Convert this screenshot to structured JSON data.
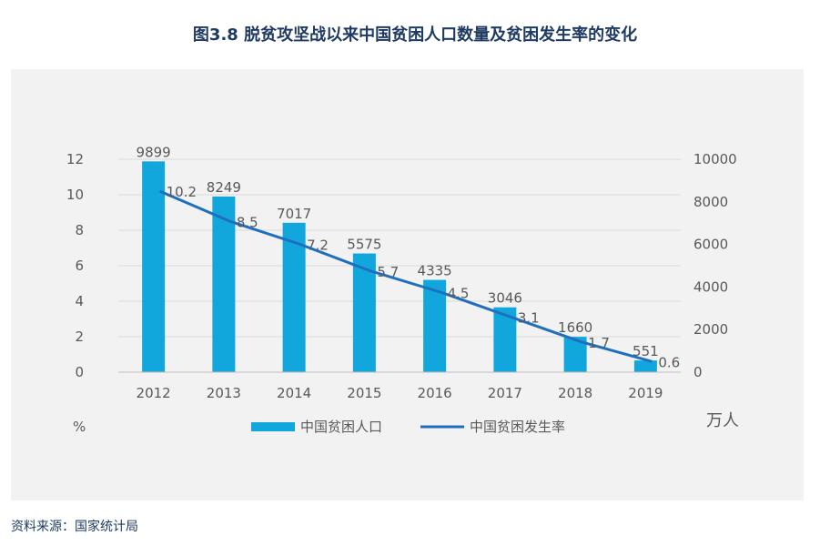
{
  "title": "图3.8 脱贫攻坚战以来中国贫困人口数量及贫困发生率的变化",
  "source": "资料来源：国家统计局",
  "colors": {
    "bar": "#12a7dc",
    "line": "#1f6fbf",
    "text": "#595959",
    "grid": "#d9d9d9",
    "title": "#1f3b63"
  },
  "chart_data": {
    "type": "bar",
    "title": "图3.8 脱贫攻坚战以来中国贫困人口数量及贫困发生率的变化",
    "categories": [
      "2012",
      "2013",
      "2014",
      "2015",
      "2016",
      "2017",
      "2018",
      "2019"
    ],
    "series": [
      {
        "name": "中国贫困人口",
        "type": "bar",
        "axis": "right",
        "unit": "万人",
        "values": [
          9899,
          8249,
          7017,
          5575,
          4335,
          3046,
          1660,
          551
        ],
        "labels": [
          "9899",
          "8249",
          "7017",
          "5575",
          "4335",
          "3046",
          "1660",
          "551"
        ]
      },
      {
        "name": "中国贫困发生率",
        "type": "line",
        "axis": "left",
        "unit": "%",
        "values": [
          10.2,
          8.5,
          7.2,
          5.7,
          4.5,
          3.1,
          1.7,
          0.6
        ],
        "labels": [
          "10.2",
          "8.5",
          "7.2",
          "5.7",
          "4.5",
          "3.1",
          "1.7",
          "0.6"
        ]
      }
    ],
    "left_axis": {
      "label": "%",
      "min": 0,
      "max": 12,
      "ticks": [
        0,
        2,
        4,
        6,
        8,
        10,
        12
      ],
      "tick_labels": [
        "0",
        "2",
        "4",
        "6",
        "8",
        "10",
        "12"
      ]
    },
    "right_axis": {
      "label": "万人",
      "min": 0,
      "max": 10000,
      "ticks": [
        0,
        2000,
        4000,
        6000,
        8000,
        10000
      ],
      "tick_labels": [
        "0",
        "2000",
        "4000",
        "6000",
        "8000",
        "10000"
      ]
    },
    "grid": true,
    "legend": {
      "position": "bottom",
      "entries": [
        "中国贫困人口",
        "中国贫困发生率"
      ]
    }
  }
}
